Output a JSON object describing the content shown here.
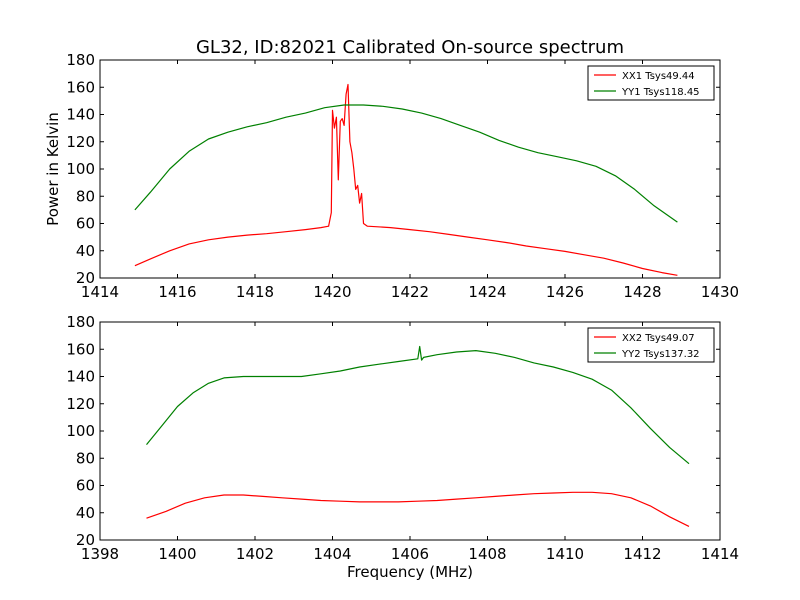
{
  "title": "GL32, ID:82021 Calibrated On-source spectrum",
  "colors": {
    "xx": "#ff0000",
    "yy": "#008000"
  },
  "chart_data": [
    {
      "type": "line",
      "ylabel": "Power in Kelvin",
      "xlabel": "",
      "xlim": [
        1414,
        1430
      ],
      "ylim": [
        20,
        180
      ],
      "xticks": [
        1414,
        1416,
        1418,
        1420,
        1422,
        1424,
        1426,
        1428,
        1430
      ],
      "yticks": [
        20,
        40,
        60,
        80,
        100,
        120,
        140,
        160,
        180
      ],
      "legend_position": "top-right",
      "series": [
        {
          "name": "XX1 Tsys49.44",
          "color": "#ff0000",
          "x": [
            1414.9,
            1415.3,
            1415.8,
            1416.3,
            1416.8,
            1417.3,
            1417.8,
            1418.3,
            1418.8,
            1419.3,
            1419.7,
            1419.9,
            1419.97,
            1420.0,
            1420.05,
            1420.1,
            1420.15,
            1420.2,
            1420.25,
            1420.3,
            1420.35,
            1420.4,
            1420.45,
            1420.5,
            1420.55,
            1420.6,
            1420.65,
            1420.7,
            1420.75,
            1420.8,
            1420.9,
            1421.5,
            1422.0,
            1422.5,
            1423.0,
            1423.5,
            1424.0,
            1424.5,
            1425.0,
            1425.5,
            1426.0,
            1426.5,
            1427.0,
            1427.5,
            1428.0,
            1428.5,
            1428.9
          ],
          "y": [
            29,
            34,
            40,
            45,
            48,
            50,
            51.5,
            52.5,
            54,
            55.5,
            57,
            58,
            68,
            143,
            130,
            138,
            92,
            135,
            137,
            132,
            155,
            162,
            120,
            112,
            100,
            85,
            88,
            75,
            82,
            60,
            58,
            57,
            55.5,
            54,
            52,
            50,
            48,
            46,
            43.5,
            41.5,
            39.5,
            37,
            34.5,
            31,
            27,
            24,
            22
          ]
        },
        {
          "name": "YY1 Tsys118.45",
          "color": "#008000",
          "x": [
            1414.9,
            1415.3,
            1415.8,
            1416.3,
            1416.8,
            1417.3,
            1417.8,
            1418.3,
            1418.8,
            1419.3,
            1419.8,
            1420.3,
            1420.8,
            1421.3,
            1421.8,
            1422.3,
            1422.8,
            1423.3,
            1423.8,
            1424.3,
            1424.8,
            1425.3,
            1425.8,
            1426.3,
            1426.8,
            1427.3,
            1427.8,
            1428.3,
            1428.9
          ],
          "y": [
            70,
            83,
            100,
            113,
            122,
            127,
            131,
            134,
            138,
            141,
            145,
            147,
            147,
            146,
            144,
            141,
            137,
            132,
            127,
            121,
            116,
            112,
            109,
            106,
            102,
            95,
            85,
            73,
            61
          ]
        }
      ]
    },
    {
      "type": "line",
      "ylabel": "",
      "xlabel": "Frequency (MHz)",
      "xlim": [
        1398,
        1414
      ],
      "ylim": [
        20,
        180
      ],
      "xticks": [
        1398,
        1400,
        1402,
        1404,
        1406,
        1408,
        1410,
        1412,
        1414
      ],
      "yticks": [
        20,
        40,
        60,
        80,
        100,
        120,
        140,
        160,
        180
      ],
      "legend_position": "top-right",
      "series": [
        {
          "name": "XX2 Tsys49.07",
          "color": "#ff0000",
          "x": [
            1399.2,
            1399.7,
            1400.2,
            1400.7,
            1401.2,
            1401.7,
            1402.2,
            1402.7,
            1403.2,
            1403.7,
            1404.2,
            1404.7,
            1405.2,
            1405.7,
            1406.2,
            1406.7,
            1407.2,
            1407.7,
            1408.2,
            1408.7,
            1409.2,
            1409.7,
            1410.2,
            1410.7,
            1411.2,
            1411.7,
            1412.2,
            1412.7,
            1413.2
          ],
          "y": [
            36,
            41,
            47,
            51,
            53,
            53,
            52,
            51,
            50,
            49,
            48.5,
            48,
            48,
            48,
            48.5,
            49,
            50,
            51,
            52,
            53,
            54,
            54.5,
            55,
            55,
            54,
            51,
            45,
            37,
            30
          ]
        },
        {
          "name": "YY2 Tsys137.32",
          "color": "#008000",
          "x": [
            1399.2,
            1399.6,
            1400.0,
            1400.4,
            1400.8,
            1401.2,
            1401.7,
            1402.2,
            1402.7,
            1403.2,
            1403.7,
            1404.2,
            1404.7,
            1405.2,
            1405.7,
            1406.2,
            1406.25,
            1406.3,
            1406.35,
            1406.7,
            1407.2,
            1407.7,
            1408.2,
            1408.7,
            1409.2,
            1409.7,
            1410.2,
            1410.7,
            1411.2,
            1411.7,
            1412.2,
            1412.7,
            1413.2
          ],
          "y": [
            90,
            104,
            118,
            128,
            135,
            139,
            140,
            140,
            140,
            140,
            142,
            144,
            147,
            149,
            151,
            153,
            162,
            152,
            154,
            156,
            158,
            159,
            157,
            154,
            150,
            147,
            143,
            138,
            130,
            117,
            102,
            88,
            76
          ]
        }
      ]
    }
  ]
}
